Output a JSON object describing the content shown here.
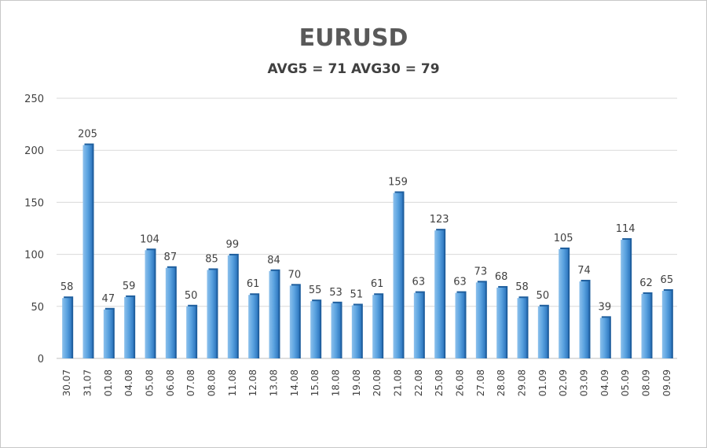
{
  "chart_data": {
    "type": "bar",
    "title": "EURUSD",
    "subtitle": "AVG5 = 71 AVG30 = 79",
    "xlabel": "",
    "ylabel": "",
    "ylim": [
      0,
      250
    ],
    "yticks": [
      0,
      50,
      100,
      150,
      200,
      250
    ],
    "grid": true,
    "categories": [
      "30.07",
      "31.07",
      "01.08",
      "04.08",
      "05.08",
      "06.08",
      "07.08",
      "08.08",
      "11.08",
      "12.08",
      "13.08",
      "14.08",
      "15.08",
      "18.08",
      "19.08",
      "20.08",
      "21.08",
      "22.08",
      "25.08",
      "26.08",
      "27.08",
      "28.08",
      "29.08",
      "01.09",
      "02.09",
      "03.09",
      "04.09",
      "05.09",
      "08.09",
      "09.09"
    ],
    "values": [
      58,
      205,
      47,
      59,
      104,
      87,
      50,
      85,
      99,
      61,
      84,
      70,
      55,
      53,
      51,
      61,
      159,
      63,
      123,
      63,
      73,
      68,
      58,
      50,
      105,
      74,
      39,
      114,
      62,
      65
    ],
    "bar_color": "#5b9bd5"
  }
}
